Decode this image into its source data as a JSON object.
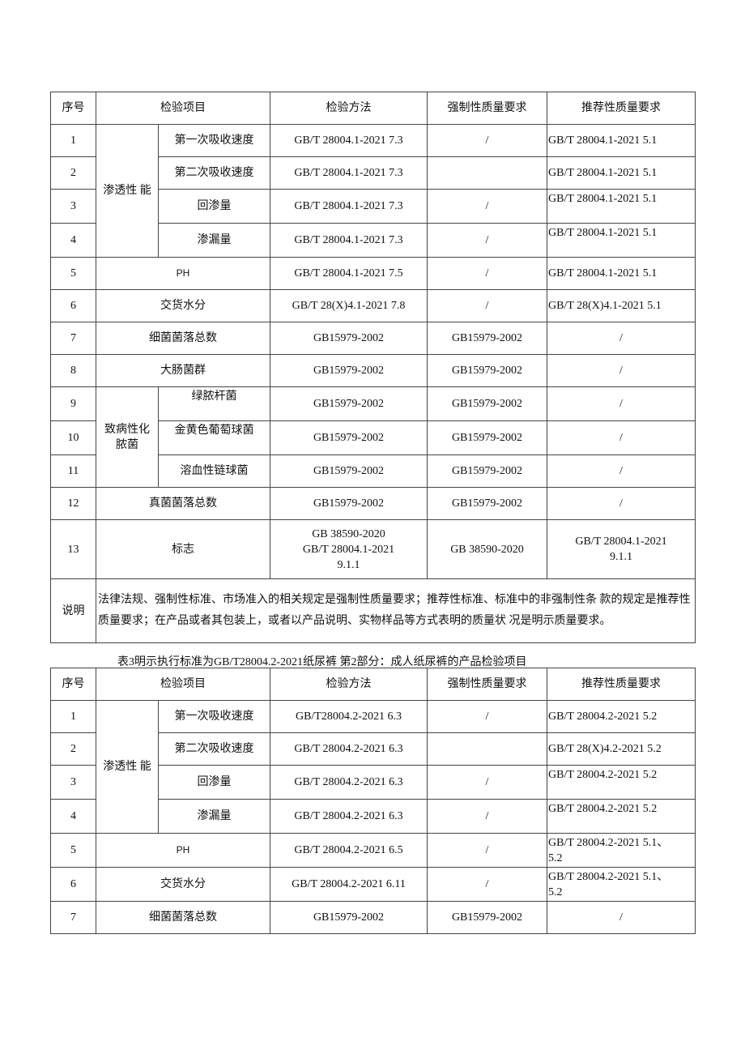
{
  "table1": {
    "headers": {
      "no": "序号",
      "item": "检验项目",
      "method": "检验方法",
      "mandatory": "强制性质量要求",
      "recommended": "推荐性质量要求"
    },
    "groups": {
      "permeability": "渗透性 能",
      "pathogen": "致病性化\n脓菌"
    },
    "rows": [
      {
        "no": "1",
        "item": "第一次吸收速度",
        "method": "GB/T 28004.1-2021 7.3",
        "mandatory": "/",
        "recommended": "GB/T 28004.1-2021 5.1"
      },
      {
        "no": "2",
        "item": "第二次吸收速度",
        "method": "GB/T 28004.1-2021 7.3",
        "mandatory": "",
        "recommended": "GB/T 28004.1-2021 5.1"
      },
      {
        "no": "3",
        "item": "回渗量",
        "method": "GB/T 28004.1-2021 7.3",
        "mandatory": "/",
        "recommended": "GB/T 28004.1-2021 5.1"
      },
      {
        "no": "4",
        "item": "渗漏量",
        "method": "GB/T 28004.1-2021 7.3",
        "mandatory": "/",
        "recommended": "GB/T 28004.1-2021 5.1"
      },
      {
        "no": "5",
        "item": "PH",
        "method": "GB/T 28004.1-2021 7.5",
        "mandatory": "/",
        "recommended": "GB/T 28004.1-2021 5.1"
      },
      {
        "no": "6",
        "item": "交货水分",
        "method": "GB/T 28(X)4.1-2021 7.8",
        "mandatory": "/",
        "recommended": "GB/T 28(X)4.1-2021 5.1"
      },
      {
        "no": "7",
        "item": "细菌菌落总数",
        "method": "GB15979-2002",
        "mandatory": "GB15979-2002",
        "recommended": "/"
      },
      {
        "no": "8",
        "item": "大肠菌群",
        "method": "GB15979-2002",
        "mandatory": "GB15979-2002",
        "recommended": "/"
      },
      {
        "no": "9",
        "item": "绿脓杆菌",
        "method": "GB15979-2002",
        "mandatory": "GB15979-2002",
        "recommended": "/"
      },
      {
        "no": "10",
        "item": "金黄色葡萄球菌",
        "method": "GB15979-2002",
        "mandatory": "GB15979-2002",
        "recommended": "/"
      },
      {
        "no": "11",
        "item": "溶血性链球菌",
        "method": "GB15979-2002",
        "mandatory": "GB15979-2002",
        "recommended": "/"
      },
      {
        "no": "12",
        "item": "真菌菌落总数",
        "method": "GB15979-2002",
        "mandatory": "GB15979-2002",
        "recommended": "/"
      },
      {
        "no": "13",
        "item": "标志",
        "method": "GB 38590-2020\nGB/T 28004.1-2021\n9.1.1",
        "mandatory": "GB 38590-2020",
        "recommended": "GB/T 28004.1-2021\n9.1.1"
      }
    ],
    "note_label": "说明",
    "note_text": "法律法规、强制性标准、市场准入的相关规定是强制性质量要求；推荐性标准、标准中的非强制性条 款的规定是推荐性质量要求；在产品或者其包装上，或者以产品说明、实物样品等方式表明的质量状 况是明示质量要求。"
  },
  "caption": "表3明示执行标准为GB/T28004.2-2021纸尿裤 第2部分：成人纸尿裤的产品检验项目",
  "table2": {
    "headers": {
      "no": "序号",
      "item": "检验项目",
      "method": "检验方法",
      "mandatory": "强制性质量要求",
      "recommended": "推荐性质量要求"
    },
    "groups": {
      "permeability": "渗透性 能"
    },
    "rows": [
      {
        "no": "1",
        "item": "第一次吸收速度",
        "method": "GB/T28004.2-2021 6.3",
        "mandatory": "/",
        "recommended": "GB/T 28004.2-2021 5.2"
      },
      {
        "no": "2",
        "item": "第二次吸收速度",
        "method": "GB/T 28004.2-2021 6.3",
        "mandatory": "",
        "recommended": "GB/T 28(X)4.2-2021 5.2"
      },
      {
        "no": "3",
        "item": "回渗量",
        "method": "GB/T 28004.2-2021 6.3",
        "mandatory": "/",
        "recommended": "GB/T 28004.2-2021 5.2"
      },
      {
        "no": "4",
        "item": "渗漏量",
        "method": "GB/T 28004.2-2021 6.3",
        "mandatory": "/",
        "recommended": "GB/T 28004.2-2021 5.2"
      },
      {
        "no": "5",
        "item": "PH",
        "method": "GB/T 28004.2-2021 6.5",
        "mandatory": "/",
        "recommended": "GB/T 28004.2-2021 5.1、\n5.2"
      },
      {
        "no": "6",
        "item": "交货水分",
        "method": "GB/T 28004.2-2021 6.11",
        "mandatory": "/",
        "recommended": "GB/T 28004.2-2021 5.1、\n5.2"
      },
      {
        "no": "7",
        "item": "细菌菌落总数",
        "method": "GB15979-2002",
        "mandatory": "GB15979-2002",
        "recommended": "/"
      }
    ]
  }
}
